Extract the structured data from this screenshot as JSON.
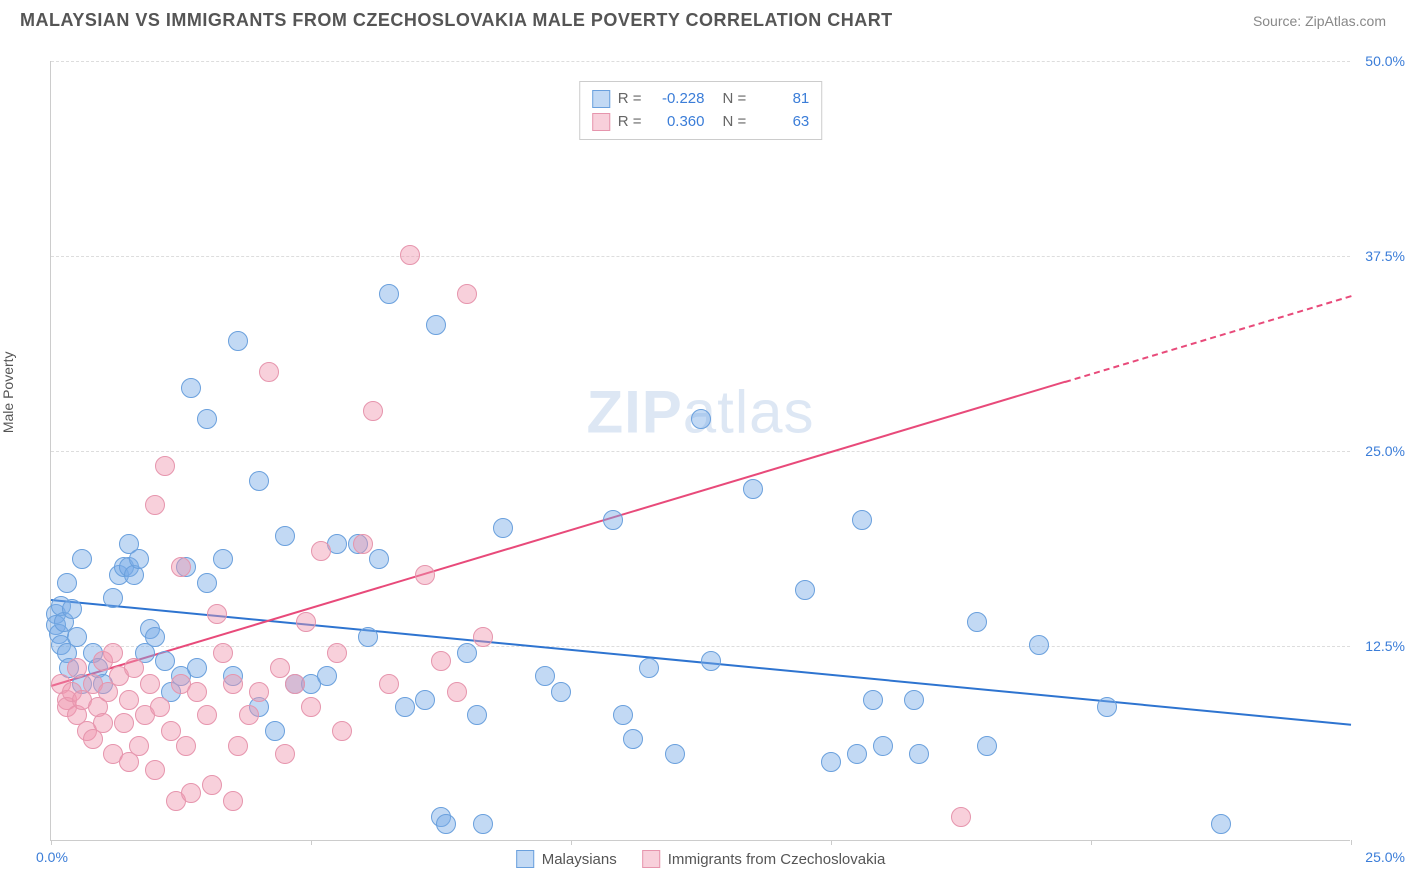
{
  "title": "MALAYSIAN VS IMMIGRANTS FROM CZECHOSLOVAKIA MALE POVERTY CORRELATION CHART",
  "source": "Source: ZipAtlas.com",
  "y_label": "Male Poverty",
  "watermark_bold": "ZIP",
  "watermark_light": "atlas",
  "chart": {
    "type": "scatter",
    "xlim": [
      0,
      25
    ],
    "ylim": [
      0,
      50
    ],
    "x_ticks_label_left": "0.0%",
    "x_ticks_label_right": "25.0%",
    "x_tick_positions": [
      0,
      5,
      10,
      15,
      20,
      25
    ],
    "y_ticks": [
      {
        "v": 12.5,
        "label": "12.5%"
      },
      {
        "v": 25.0,
        "label": "25.0%"
      },
      {
        "v": 37.5,
        "label": "37.5%"
      },
      {
        "v": 50.0,
        "label": "50.0%"
      }
    ],
    "background_color": "#ffffff",
    "grid_color": "#dddddd",
    "series": [
      {
        "name": "Malaysians",
        "color_fill": "rgba(120,170,230,0.45)",
        "color_stroke": "#6aa0dd",
        "marker_radius": 10,
        "trend": {
          "x1": 0,
          "y1": 15.5,
          "x2": 25,
          "y2": 7.5,
          "color": "#2e74d0",
          "width": 2
        },
        "stats": {
          "R": "-0.228",
          "N": "81"
        },
        "points": [
          [
            0.1,
            14.5
          ],
          [
            0.1,
            13.8
          ],
          [
            0.15,
            13.2
          ],
          [
            0.2,
            12.5
          ],
          [
            0.2,
            15.0
          ],
          [
            0.25,
            14.0
          ],
          [
            0.3,
            12.0
          ],
          [
            0.3,
            16.5
          ],
          [
            0.35,
            11.0
          ],
          [
            0.4,
            14.8
          ],
          [
            0.5,
            13.0
          ],
          [
            0.6,
            10.0
          ],
          [
            0.6,
            18.0
          ],
          [
            0.8,
            12.0
          ],
          [
            0.9,
            11.0
          ],
          [
            1.0,
            10.0
          ],
          [
            1.2,
            15.5
          ],
          [
            1.3,
            17.0
          ],
          [
            1.4,
            17.5
          ],
          [
            1.5,
            17.5
          ],
          [
            1.5,
            19.0
          ],
          [
            1.6,
            17.0
          ],
          [
            1.7,
            18.0
          ],
          [
            1.8,
            12.0
          ],
          [
            1.9,
            13.5
          ],
          [
            2.0,
            13.0
          ],
          [
            2.2,
            11.5
          ],
          [
            2.3,
            9.5
          ],
          [
            2.5,
            10.5
          ],
          [
            2.6,
            17.5
          ],
          [
            2.7,
            29.0
          ],
          [
            2.8,
            11.0
          ],
          [
            3.0,
            27.0
          ],
          [
            3.0,
            16.5
          ],
          [
            3.3,
            18.0
          ],
          [
            3.5,
            10.5
          ],
          [
            3.6,
            32.0
          ],
          [
            4.0,
            8.5
          ],
          [
            4.0,
            23.0
          ],
          [
            4.3,
            7.0
          ],
          [
            4.5,
            19.5
          ],
          [
            4.7,
            10.0
          ],
          [
            5.0,
            10.0
          ],
          [
            5.3,
            10.5
          ],
          [
            5.5,
            19.0
          ],
          [
            5.9,
            19.0
          ],
          [
            6.1,
            13.0
          ],
          [
            6.5,
            35.0
          ],
          [
            6.8,
            8.5
          ],
          [
            7.2,
            9.0
          ],
          [
            7.4,
            33.0
          ],
          [
            7.5,
            1.5
          ],
          [
            7.6,
            1.0
          ],
          [
            8.0,
            12.0
          ],
          [
            8.2,
            8.0
          ],
          [
            8.3,
            1.0
          ],
          [
            8.7,
            20.0
          ],
          [
            9.5,
            10.5
          ],
          [
            9.8,
            9.5
          ],
          [
            10.8,
            20.5
          ],
          [
            11.2,
            6.5
          ],
          [
            11.5,
            11.0
          ],
          [
            12.0,
            5.5
          ],
          [
            12.5,
            27.0
          ],
          [
            12.7,
            11.5
          ],
          [
            13.5,
            22.5
          ],
          [
            14.5,
            16.0
          ],
          [
            15.0,
            5.0
          ],
          [
            15.5,
            5.5
          ],
          [
            15.6,
            20.5
          ],
          [
            15.8,
            9.0
          ],
          [
            16.0,
            6.0
          ],
          [
            16.6,
            9.0
          ],
          [
            16.7,
            5.5
          ],
          [
            17.8,
            14.0
          ],
          [
            18.0,
            6.0
          ],
          [
            19.0,
            12.5
          ],
          [
            20.3,
            8.5
          ],
          [
            22.5,
            1.0
          ],
          [
            11.0,
            8.0
          ],
          [
            6.3,
            18.0
          ]
        ]
      },
      {
        "name": "Immigrants from Czechoslovakia",
        "color_fill": "rgba(240,150,175,0.45)",
        "color_stroke": "#e695ad",
        "marker_radius": 10,
        "trend": {
          "x1": 0,
          "y1": 10.0,
          "x2": 19.5,
          "y2": 29.5,
          "color": "#e84a7a",
          "width": 2,
          "dash_to_x": 25,
          "dash_to_y": 35.0
        },
        "stats": {
          "R": "0.360",
          "N": "63"
        },
        "points": [
          [
            0.2,
            10.0
          ],
          [
            0.3,
            9.0
          ],
          [
            0.3,
            8.5
          ],
          [
            0.4,
            9.5
          ],
          [
            0.5,
            8.0
          ],
          [
            0.5,
            11.0
          ],
          [
            0.6,
            9.0
          ],
          [
            0.7,
            7.0
          ],
          [
            0.8,
            10.0
          ],
          [
            0.8,
            6.5
          ],
          [
            0.9,
            8.5
          ],
          [
            1.0,
            7.5
          ],
          [
            1.0,
            11.5
          ],
          [
            1.1,
            9.5
          ],
          [
            1.2,
            5.5
          ],
          [
            1.2,
            12.0
          ],
          [
            1.3,
            10.5
          ],
          [
            1.4,
            7.5
          ],
          [
            1.5,
            5.0
          ],
          [
            1.5,
            9.0
          ],
          [
            1.6,
            11.0
          ],
          [
            1.7,
            6.0
          ],
          [
            1.8,
            8.0
          ],
          [
            1.9,
            10.0
          ],
          [
            2.0,
            4.5
          ],
          [
            2.0,
            21.5
          ],
          [
            2.1,
            8.5
          ],
          [
            2.2,
            24.0
          ],
          [
            2.3,
            7.0
          ],
          [
            2.4,
            2.5
          ],
          [
            2.5,
            10.0
          ],
          [
            2.5,
            17.5
          ],
          [
            2.6,
            6.0
          ],
          [
            2.7,
            3.0
          ],
          [
            2.8,
            9.5
          ],
          [
            3.0,
            8.0
          ],
          [
            3.1,
            3.5
          ],
          [
            3.2,
            14.5
          ],
          [
            3.3,
            12.0
          ],
          [
            3.5,
            10.0
          ],
          [
            3.5,
            2.5
          ],
          [
            3.6,
            6.0
          ],
          [
            3.8,
            8.0
          ],
          [
            4.0,
            9.5
          ],
          [
            4.2,
            30.0
          ],
          [
            4.4,
            11.0
          ],
          [
            4.5,
            5.5
          ],
          [
            4.7,
            10.0
          ],
          [
            5.0,
            8.5
          ],
          [
            5.2,
            18.5
          ],
          [
            5.5,
            12.0
          ],
          [
            5.6,
            7.0
          ],
          [
            6.0,
            19.0
          ],
          [
            6.2,
            27.5
          ],
          [
            6.5,
            10.0
          ],
          [
            6.9,
            37.5
          ],
          [
            7.2,
            17.0
          ],
          [
            7.5,
            11.5
          ],
          [
            7.8,
            9.5
          ],
          [
            8.0,
            35.0
          ],
          [
            8.3,
            13.0
          ],
          [
            17.5,
            1.5
          ],
          [
            4.9,
            14.0
          ]
        ]
      }
    ]
  },
  "legend_labels": {
    "series1": "Malaysians",
    "series2": "Immigrants from Czechoslovakia"
  },
  "stats_labels": {
    "R": "R =",
    "N": "N ="
  }
}
